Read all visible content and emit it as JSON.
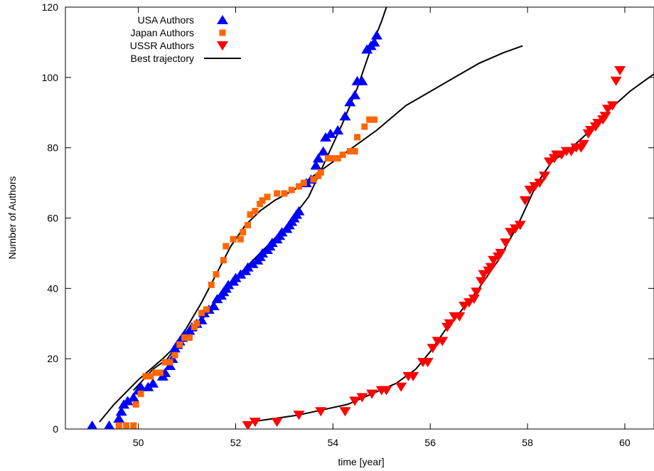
{
  "chart_data": {
    "type": "scatter",
    "xlabel": "time [year]",
    "ylabel": "Number of Authors",
    "xlim": [
      48.5,
      60.6
    ],
    "ylim": [
      0,
      120
    ],
    "xticks": [
      50,
      52,
      54,
      56,
      58,
      60
    ],
    "yticks": [
      0,
      20,
      40,
      60,
      80,
      100,
      120
    ],
    "legend_position": "top-left",
    "grid": false,
    "series": [
      {
        "name": "USA Authors",
        "marker": "triangle-up",
        "color": "#0000ff",
        "points": [
          [
            49.05,
            1
          ],
          [
            49.4,
            1
          ],
          [
            49.6,
            3
          ],
          [
            49.65,
            5
          ],
          [
            49.7,
            7
          ],
          [
            49.78,
            8
          ],
          [
            49.9,
            9
          ],
          [
            50.0,
            11
          ],
          [
            50.05,
            12
          ],
          [
            50.2,
            12
          ],
          [
            50.3,
            13
          ],
          [
            50.5,
            15
          ],
          [
            50.55,
            16
          ],
          [
            50.65,
            18
          ],
          [
            50.7,
            20
          ],
          [
            50.75,
            23
          ],
          [
            50.8,
            24
          ],
          [
            50.85,
            25
          ],
          [
            50.9,
            26
          ],
          [
            50.95,
            27
          ],
          [
            51.05,
            28
          ],
          [
            51.1,
            29
          ],
          [
            51.2,
            30
          ],
          [
            51.3,
            31
          ],
          [
            51.35,
            33
          ],
          [
            51.45,
            34
          ],
          [
            51.55,
            35
          ],
          [
            51.62,
            37
          ],
          [
            51.7,
            38
          ],
          [
            51.75,
            39
          ],
          [
            51.8,
            40
          ],
          [
            51.85,
            41
          ],
          [
            51.95,
            42
          ],
          [
            52.0,
            43
          ],
          [
            52.1,
            44
          ],
          [
            52.2,
            45
          ],
          [
            52.25,
            46
          ],
          [
            52.35,
            47
          ],
          [
            52.45,
            48
          ],
          [
            52.5,
            49
          ],
          [
            52.55,
            50
          ],
          [
            52.65,
            51
          ],
          [
            52.7,
            52
          ],
          [
            52.75,
            53
          ],
          [
            52.85,
            54
          ],
          [
            52.9,
            55
          ],
          [
            52.95,
            56
          ],
          [
            53.05,
            57
          ],
          [
            53.1,
            58
          ],
          [
            53.15,
            59
          ],
          [
            53.2,
            60
          ],
          [
            53.25,
            61
          ],
          [
            53.3,
            62
          ],
          [
            53.45,
            70
          ],
          [
            53.55,
            71
          ],
          [
            53.65,
            75
          ],
          [
            53.7,
            77
          ],
          [
            53.8,
            79
          ],
          [
            53.85,
            83
          ],
          [
            53.95,
            84
          ],
          [
            54.1,
            85
          ],
          [
            54.25,
            89
          ],
          [
            54.35,
            93
          ],
          [
            54.45,
            95
          ],
          [
            54.5,
            99
          ],
          [
            54.6,
            99
          ],
          [
            54.7,
            108
          ],
          [
            54.78,
            109
          ],
          [
            54.85,
            110
          ],
          [
            54.9,
            112
          ]
        ]
      },
      {
        "name": "Japan Authors",
        "marker": "square",
        "color": "#ff6600",
        "points": [
          [
            49.6,
            1
          ],
          [
            49.75,
            1
          ],
          [
            49.9,
            1
          ],
          [
            49.95,
            7
          ],
          [
            50.05,
            10
          ],
          [
            50.15,
            15
          ],
          [
            50.25,
            15
          ],
          [
            50.35,
            16
          ],
          [
            50.45,
            16
          ],
          [
            50.55,
            19
          ],
          [
            50.65,
            19
          ],
          [
            50.75,
            21
          ],
          [
            50.85,
            24
          ],
          [
            50.95,
            26
          ],
          [
            51.05,
            26
          ],
          [
            51.15,
            29
          ],
          [
            51.2,
            30
          ],
          [
            51.3,
            33
          ],
          [
            51.4,
            34
          ],
          [
            51.5,
            41
          ],
          [
            51.6,
            44
          ],
          [
            51.75,
            48
          ],
          [
            51.8,
            52
          ],
          [
            51.95,
            54
          ],
          [
            52.1,
            54
          ],
          [
            52.15,
            56
          ],
          [
            52.25,
            58
          ],
          [
            52.3,
            61
          ],
          [
            52.4,
            62
          ],
          [
            52.5,
            64
          ],
          [
            52.55,
            65
          ],
          [
            52.65,
            66
          ],
          [
            52.85,
            67
          ],
          [
            53.0,
            67
          ],
          [
            53.15,
            68
          ],
          [
            53.3,
            69
          ],
          [
            53.4,
            70
          ],
          [
            53.6,
            71
          ],
          [
            53.7,
            72
          ],
          [
            53.75,
            73
          ],
          [
            53.9,
            77
          ],
          [
            54.0,
            77
          ],
          [
            54.1,
            77
          ],
          [
            54.2,
            78
          ],
          [
            54.35,
            79
          ],
          [
            54.45,
            79
          ],
          [
            54.5,
            83
          ],
          [
            54.65,
            86
          ],
          [
            54.75,
            88
          ],
          [
            54.85,
            88
          ]
        ]
      },
      {
        "name": "USSR Authors",
        "marker": "triangle-down",
        "color": "#ff0000",
        "points": [
          [
            52.25,
            1
          ],
          [
            52.4,
            2
          ],
          [
            52.85,
            2
          ],
          [
            53.3,
            4
          ],
          [
            53.75,
            5
          ],
          [
            54.25,
            5
          ],
          [
            54.45,
            8
          ],
          [
            54.6,
            9
          ],
          [
            54.8,
            10
          ],
          [
            55.0,
            11
          ],
          [
            55.1,
            11
          ],
          [
            55.4,
            12
          ],
          [
            55.55,
            15
          ],
          [
            55.65,
            15
          ],
          [
            55.85,
            19
          ],
          [
            55.95,
            19
          ],
          [
            56.05,
            23
          ],
          [
            56.15,
            25
          ],
          [
            56.25,
            25
          ],
          [
            56.35,
            29
          ],
          [
            56.4,
            30
          ],
          [
            56.5,
            32
          ],
          [
            56.6,
            32
          ],
          [
            56.7,
            35
          ],
          [
            56.8,
            36
          ],
          [
            56.9,
            37
          ],
          [
            56.95,
            39
          ],
          [
            57.05,
            42
          ],
          [
            57.1,
            44
          ],
          [
            57.2,
            45
          ],
          [
            57.25,
            46
          ],
          [
            57.3,
            48
          ],
          [
            57.4,
            49
          ],
          [
            57.45,
            50
          ],
          [
            57.55,
            53
          ],
          [
            57.65,
            56
          ],
          [
            57.75,
            57
          ],
          [
            57.85,
            58
          ],
          [
            57.95,
            65
          ],
          [
            58.05,
            68
          ],
          [
            58.15,
            69
          ],
          [
            58.25,
            70
          ],
          [
            58.35,
            72
          ],
          [
            58.45,
            76
          ],
          [
            58.55,
            77
          ],
          [
            58.6,
            78
          ],
          [
            58.7,
            78
          ],
          [
            58.8,
            79
          ],
          [
            58.9,
            79
          ],
          [
            59.0,
            80
          ],
          [
            59.1,
            80
          ],
          [
            59.15,
            81
          ],
          [
            59.25,
            84
          ],
          [
            59.3,
            85
          ],
          [
            59.4,
            86
          ],
          [
            59.45,
            87
          ],
          [
            59.55,
            88
          ],
          [
            59.6,
            89
          ],
          [
            59.65,
            91
          ],
          [
            59.75,
            92
          ],
          [
            59.82,
            99
          ],
          [
            59.9,
            102
          ]
        ]
      }
    ],
    "lines": [
      {
        "name": "Best trajectory",
        "color": "#000000",
        "points": [
          [
            49.2,
            2
          ],
          [
            49.5,
            7
          ],
          [
            50.0,
            14
          ],
          [
            50.5,
            20
          ],
          [
            50.8,
            24
          ],
          [
            51.0,
            27
          ],
          [
            51.3,
            31
          ],
          [
            51.7,
            38
          ],
          [
            52.0,
            43
          ],
          [
            52.5,
            50
          ],
          [
            53.0,
            57
          ],
          [
            53.5,
            66
          ],
          [
            53.8,
            75
          ],
          [
            54.2,
            87
          ],
          [
            54.5,
            97
          ],
          [
            54.8,
            109
          ],
          [
            55.0,
            116
          ],
          [
            55.1,
            120
          ]
        ]
      },
      {
        "name": "",
        "color": "#000000",
        "points": [
          [
            49.9,
            11
          ],
          [
            50.3,
            17
          ],
          [
            50.6,
            20
          ],
          [
            50.8,
            24
          ],
          [
            51.0,
            29
          ],
          [
            51.3,
            36
          ],
          [
            51.6,
            44
          ],
          [
            51.9,
            52
          ],
          [
            52.2,
            58
          ],
          [
            52.5,
            62
          ],
          [
            52.8,
            65
          ],
          [
            53.2,
            68
          ],
          [
            53.8,
            74
          ],
          [
            54.3,
            79
          ],
          [
            54.9,
            85
          ],
          [
            55.5,
            92
          ],
          [
            56.0,
            96
          ],
          [
            56.5,
            100
          ],
          [
            57.0,
            104
          ],
          [
            57.5,
            107
          ],
          [
            57.9,
            109
          ]
        ]
      },
      {
        "name": "",
        "color": "#000000",
        "points": [
          [
            52.3,
            2
          ],
          [
            52.8,
            3
          ],
          [
            53.3,
            4
          ],
          [
            53.8,
            5.5
          ],
          [
            54.3,
            7
          ],
          [
            54.8,
            10
          ],
          [
            55.3,
            13
          ],
          [
            55.7,
            17
          ],
          [
            56.0,
            22
          ],
          [
            56.3,
            28
          ],
          [
            56.6,
            33
          ],
          [
            57.0,
            40
          ],
          [
            57.4,
            48
          ],
          [
            57.8,
            58
          ],
          [
            58.2,
            70
          ],
          [
            58.5,
            76
          ],
          [
            58.9,
            80
          ],
          [
            59.3,
            85
          ],
          [
            59.7,
            91
          ],
          [
            60.1,
            96
          ],
          [
            60.6,
            101
          ]
        ]
      }
    ]
  }
}
